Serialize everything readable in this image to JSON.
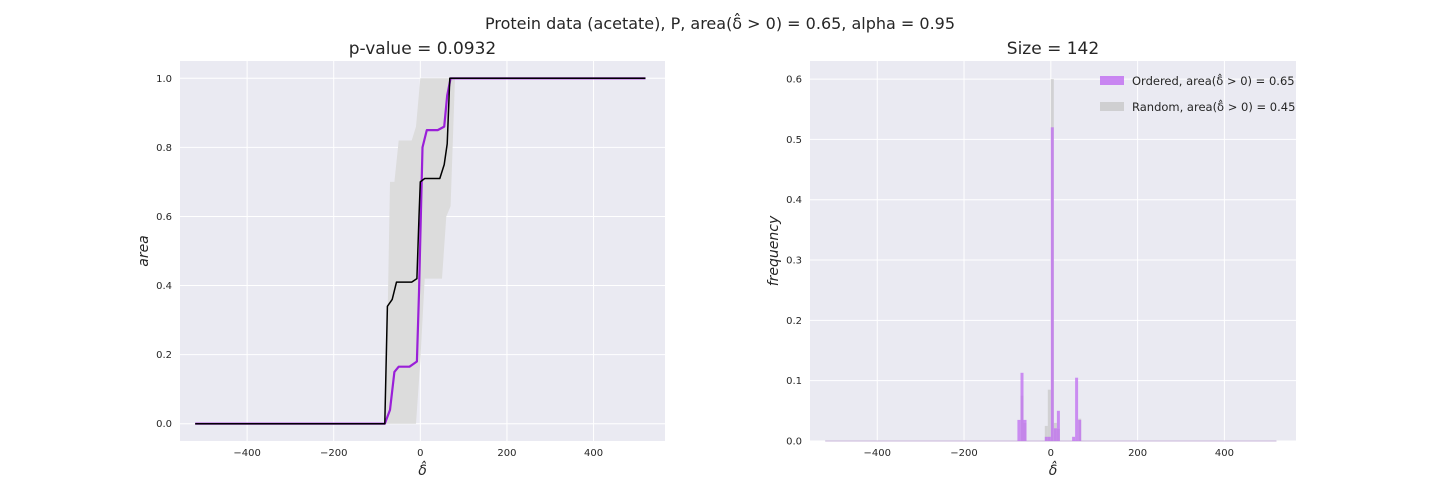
{
  "figure": {
    "suptitle": "Protein data (acetate), P, area(δ̂ > 0) = 0.65, alpha = 0.95"
  },
  "chart_data": [
    {
      "type": "line",
      "title": "p-value = 0.0932",
      "xlabel": "δ̂",
      "ylabel": "area",
      "xlim": [
        -555,
        565
      ],
      "ylim": [
        -0.05,
        1.05
      ],
      "xticks": [
        -400,
        -200,
        0,
        200,
        400
      ],
      "yticks": [
        0.0,
        0.2,
        0.4,
        0.6,
        0.8,
        1.0
      ],
      "xtick_labels": [
        "−400",
        "−200",
        "0",
        "200",
        "400"
      ],
      "ytick_labels": [
        "0.0",
        "0.2",
        "0.4",
        "0.6",
        "0.8",
        "1.0"
      ],
      "grid": true,
      "band": {
        "x": [
          -80,
          -70,
          -60,
          -50,
          -40,
          -30,
          -20,
          -10,
          0,
          10,
          20,
          30,
          40,
          50,
          60,
          70,
          80
        ],
        "lower": [
          0.0,
          0.0,
          0.0,
          0.0,
          0.0,
          0.0,
          0.0,
          0.0,
          0.18,
          0.42,
          0.42,
          0.42,
          0.42,
          0.42,
          0.6,
          0.63,
          1.0
        ],
        "upper": [
          0.0,
          0.7,
          0.7,
          0.82,
          0.82,
          0.82,
          0.82,
          0.86,
          1.0,
          1.0,
          1.0,
          1.0,
          1.0,
          1.0,
          1.0,
          1.0,
          1.0
        ],
        "color": "#dcdcdc"
      },
      "series": [
        {
          "color": "#9a1fd8",
          "x": [
            -520,
            -82,
            -70,
            -60,
            -50,
            -40,
            -25,
            -8,
            -3,
            5,
            15,
            25,
            40,
            55,
            62,
            70,
            78,
            520
          ],
          "y": [
            0.0,
            0.0,
            0.04,
            0.15,
            0.165,
            0.165,
            0.165,
            0.18,
            0.38,
            0.8,
            0.85,
            0.85,
            0.85,
            0.86,
            0.95,
            1.0,
            1.0,
            1.0
          ]
        },
        {
          "color": "#000000",
          "x": [
            -520,
            -82,
            -76,
            -65,
            -55,
            -48,
            -35,
            -20,
            -8,
            -3,
            0,
            10,
            20,
            35,
            45,
            55,
            62,
            68,
            75,
            520
          ],
          "y": [
            0.0,
            0.0,
            0.34,
            0.36,
            0.41,
            0.41,
            0.41,
            0.41,
            0.42,
            0.6,
            0.7,
            0.71,
            0.71,
            0.71,
            0.71,
            0.75,
            0.81,
            1.0,
            1.0,
            1.0
          ]
        }
      ]
    },
    {
      "type": "bar",
      "title": "Size = 142",
      "xlabel": "δ̂",
      "ylabel": "frequency",
      "xlim": [
        -555,
        565
      ],
      "ylim": [
        0,
        0.63
      ],
      "xticks": [
        -400,
        -200,
        0,
        200,
        400
      ],
      "yticks": [
        0.0,
        0.1,
        0.2,
        0.3,
        0.4,
        0.5,
        0.6
      ],
      "xtick_labels": [
        "−400",
        "−200",
        "0",
        "200",
        "400"
      ],
      "ytick_labels": [
        "0.0",
        "0.1",
        "0.2",
        "0.3",
        "0.4",
        "0.5",
        "0.6"
      ],
      "grid": true,
      "legend_position": "top-right",
      "bin_width": 7,
      "series": [
        {
          "name": "Ordered, area(δ̂ > 0) = 0.65",
          "color": "#bf6cf0",
          "x": [
            -77,
            -70,
            -63,
            -14,
            -7,
            0,
            7,
            14,
            49,
            56,
            63
          ],
          "values": [
            0.035,
            0.113,
            0.035,
            0.007,
            0.007,
            0.52,
            0.021,
            0.05,
            0.007,
            0.105,
            0.035
          ]
        },
        {
          "name": "Random, area(δ̂ > 0) = 0.45",
          "color": "#c8c8c8",
          "x": [
            -70,
            -63,
            -14,
            -7,
            0,
            7,
            14,
            63
          ],
          "values": [
            0.075,
            0.03,
            0.025,
            0.085,
            0.6,
            0.03,
            0.02,
            0.037
          ]
        }
      ]
    }
  ]
}
